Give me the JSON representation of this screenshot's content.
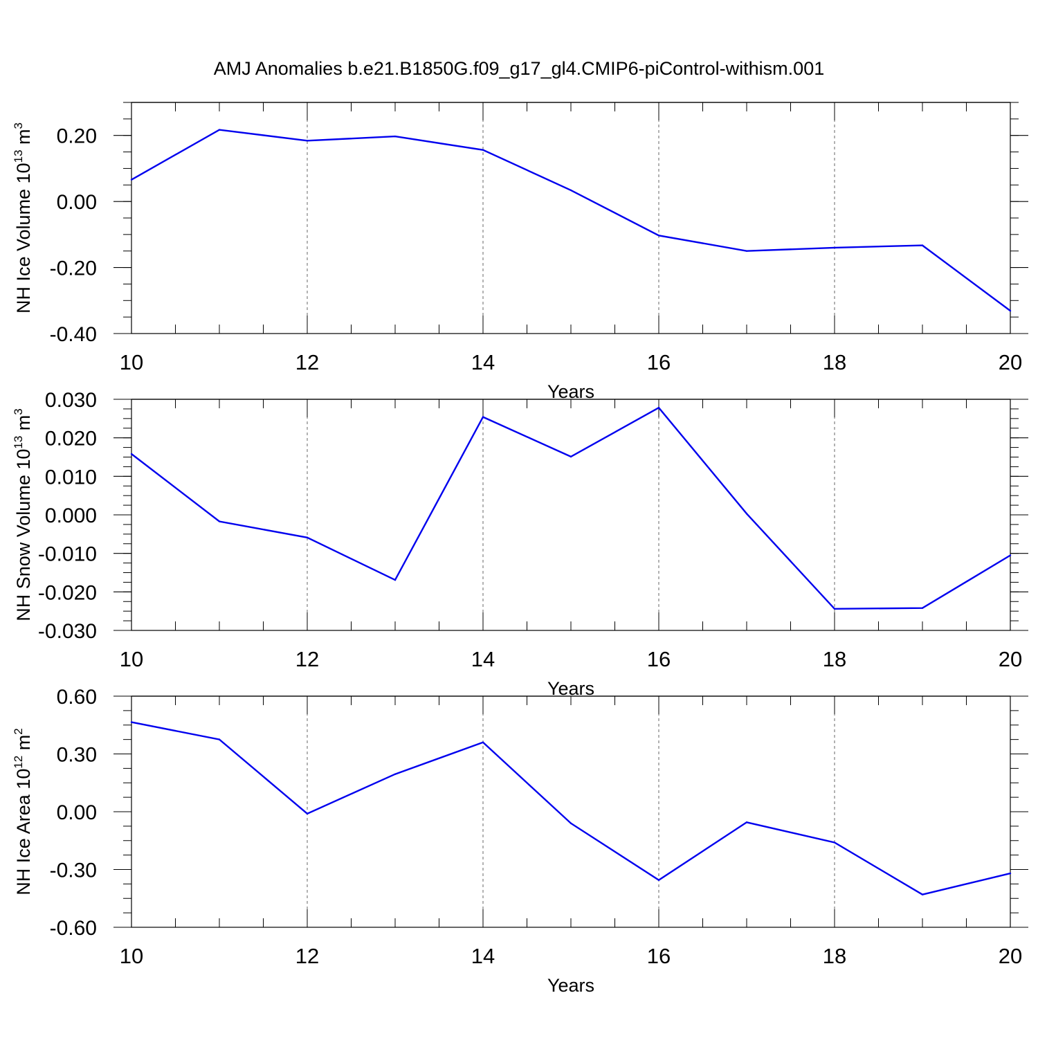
{
  "figure": {
    "title": "AMJ Anomalies b.e21.B1850G.f09_g17_gl4.CMIP6-piControl-withism.001"
  },
  "chart_data": [
    {
      "type": "line",
      "xlabel": "Years",
      "ylabel_main": "NH Ice Volume 10",
      "ylabel_exp": "13",
      "ylabel_unit": "m",
      "ylabel_unit_exp": "3",
      "xlim": [
        10,
        20
      ],
      "ylim": [
        -0.4,
        0.3
      ],
      "xticks": [
        10,
        12,
        14,
        16,
        18,
        20
      ],
      "yticks": [
        -0.4,
        -0.2,
        0.0,
        0.2
      ],
      "ytick_labels": [
        "-0.40",
        "-0.20",
        "0.00",
        "0.20"
      ],
      "y_minor_step": 0.05,
      "ref_line": 0.3,
      "grid": "vertical dashed at major x ticks",
      "line_color": "#0000ee",
      "x": [
        10,
        11,
        12,
        13,
        14,
        15,
        16,
        17,
        18,
        19,
        20
      ],
      "y": [
        0.066,
        0.217,
        0.184,
        0.197,
        0.156,
        0.034,
        -0.103,
        -0.15,
        -0.14,
        -0.133,
        -0.331
      ]
    },
    {
      "type": "line",
      "xlabel": "Years",
      "ylabel_main": "NH Snow Volume 10",
      "ylabel_exp": "13",
      "ylabel_unit": "m",
      "ylabel_unit_exp": "3",
      "xlim": [
        10,
        20
      ],
      "ylim": [
        -0.03,
        0.03
      ],
      "xticks": [
        10,
        12,
        14,
        16,
        18,
        20
      ],
      "yticks": [
        -0.03,
        -0.02,
        -0.01,
        0.0,
        0.01,
        0.02,
        0.03
      ],
      "ytick_labels": [
        "-0.030",
        "-0.020",
        "-0.010",
        "0.000",
        "0.010",
        "0.020",
        "0.030"
      ],
      "y_minor_step": 0.0025,
      "ref_line": 0.03,
      "grid": "vertical dashed at major x ticks",
      "line_color": "#0000ee",
      "x": [
        10,
        11,
        12,
        13,
        14,
        15,
        16,
        17,
        18,
        19,
        20
      ],
      "y": [
        0.0158,
        -0.0017,
        -0.0059,
        -0.0169,
        0.0254,
        0.0151,
        0.0278,
        0.0003,
        -0.0244,
        -0.0242,
        -0.0105
      ]
    },
    {
      "type": "line",
      "xlabel": "Years",
      "ylabel_main": "NH Ice Area 10",
      "ylabel_exp": "12",
      "ylabel_unit": "m",
      "ylabel_unit_exp": "2",
      "xlim": [
        10,
        20
      ],
      "ylim": [
        -0.6,
        0.6
      ],
      "xticks": [
        10,
        12,
        14,
        16,
        18,
        20
      ],
      "yticks": [
        -0.6,
        -0.3,
        0.0,
        0.3,
        0.6
      ],
      "ytick_labels": [
        "-0.60",
        "-0.30",
        "0.00",
        "0.30",
        "0.60"
      ],
      "y_minor_step": 0.075,
      "ref_line": 0.6,
      "grid": "vertical dashed at major x ticks",
      "line_color": "#0000ee",
      "x": [
        10,
        11,
        12,
        13,
        14,
        15,
        16,
        17,
        18,
        19,
        20
      ],
      "y": [
        0.465,
        0.375,
        -0.01,
        0.195,
        0.36,
        -0.06,
        -0.355,
        -0.055,
        -0.16,
        -0.43,
        -0.32
      ]
    }
  ]
}
